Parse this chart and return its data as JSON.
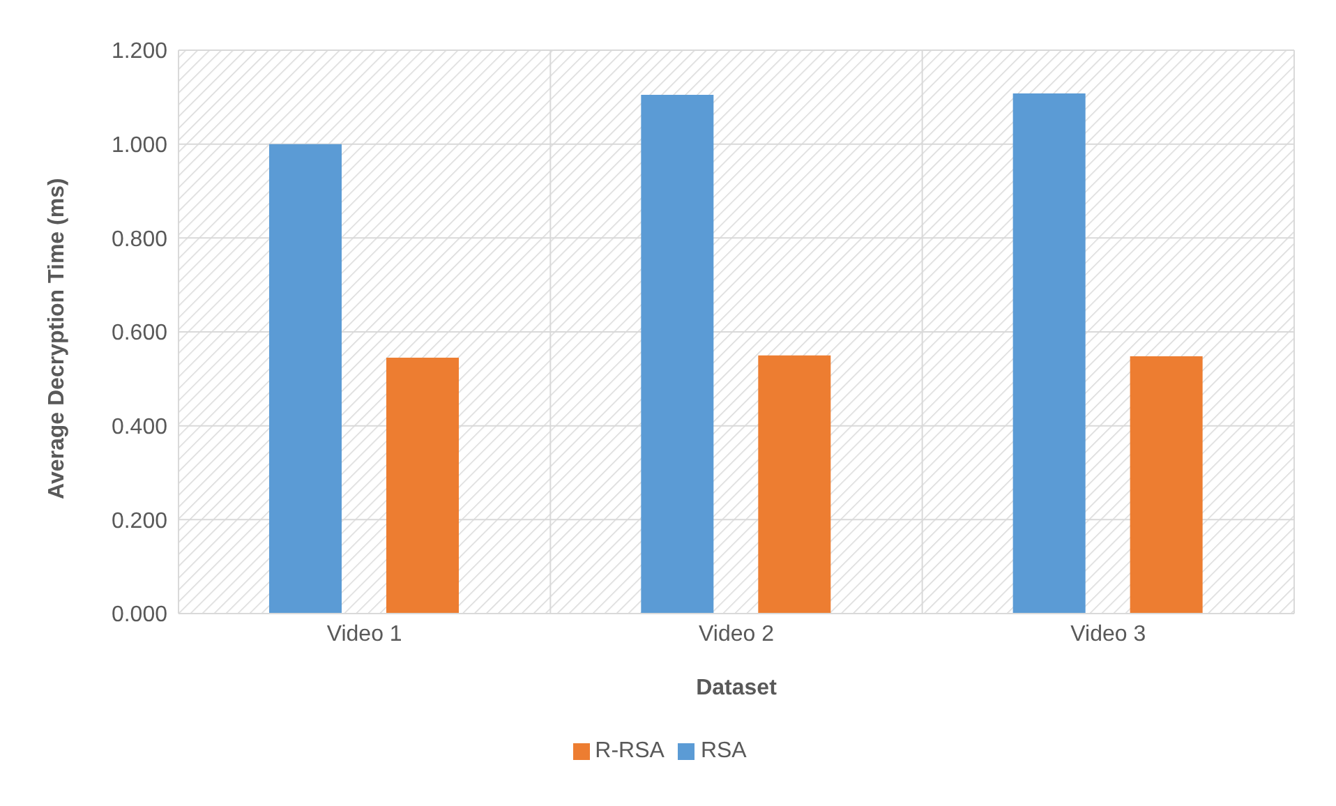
{
  "chart_data": {
    "type": "bar",
    "xlabel": "Dataset",
    "ylabel": "Average Decryption Time (ms)",
    "categories": [
      "Video 1",
      "Video 2",
      "Video 3"
    ],
    "series": [
      {
        "name": "RSA",
        "color": "#5b9bd5",
        "values": [
          1.0,
          1.105,
          1.108
        ]
      },
      {
        "name": "R-RSA",
        "color": "#ed7d31",
        "values": [
          0.545,
          0.55,
          0.548
        ]
      }
    ],
    "ylim": [
      0,
      1.2
    ],
    "yticks": [
      {
        "value": 0,
        "label": "0.000"
      },
      {
        "value": 0.2,
        "label": "0.200"
      },
      {
        "value": 0.4,
        "label": "0.400"
      },
      {
        "value": 0.6,
        "label": "0.600"
      },
      {
        "value": 0.8,
        "label": "0.800"
      },
      {
        "value": 1.0,
        "label": "1.000"
      },
      {
        "value": 1.2,
        "label": "1.200"
      }
    ],
    "grid": true,
    "legend": "bottom"
  }
}
